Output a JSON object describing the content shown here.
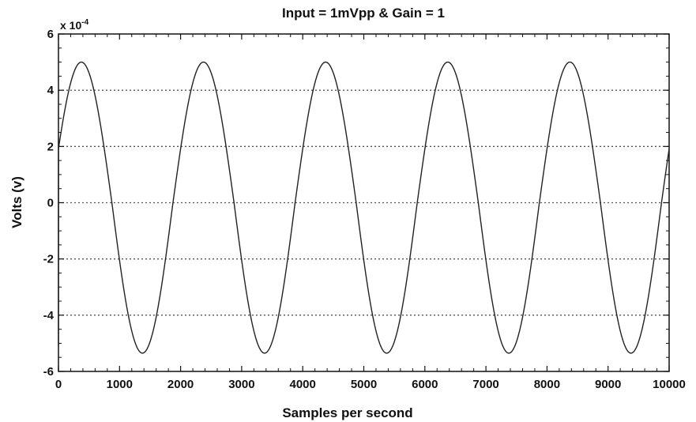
{
  "chart_data": {
    "type": "line",
    "title": "Input = 1mVpp & Gain = 1",
    "xlabel": "Samples per second",
    "ylabel": "Volts (v)",
    "xlim": [
      0,
      10000
    ],
    "ylim": [
      -6,
      6
    ],
    "y_multiplier": "x 10",
    "y_exponent": "-4",
    "x_ticks": [
      "0",
      "1000",
      "2000",
      "3000",
      "4000",
      "5000",
      "6000",
      "7000",
      "8000",
      "9000",
      "10000"
    ],
    "y_ticks": [
      "-6",
      "-4",
      "-2",
      "0",
      "2",
      "4",
      "6"
    ],
    "grid": "horizontal dotted",
    "series": [
      {
        "amplitude_pos": 5.0,
        "amplitude_neg": -5.35,
        "period": 2000,
        "first_peak_x": 375,
        "color": "#222222"
      }
    ]
  }
}
